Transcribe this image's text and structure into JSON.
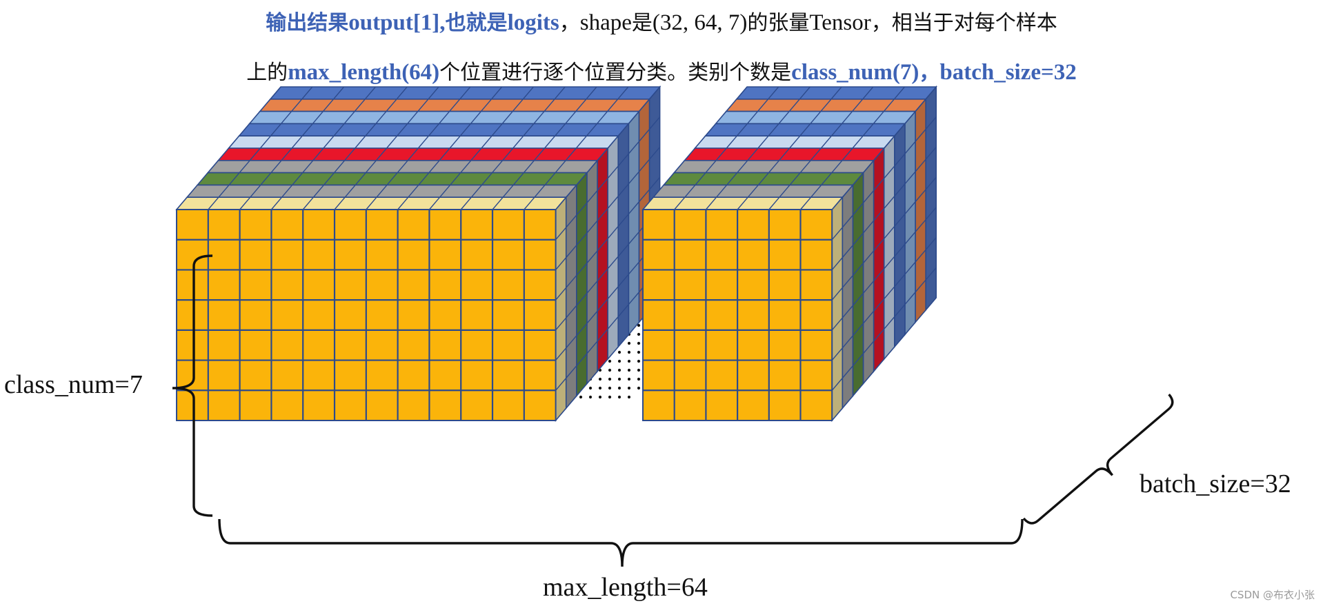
{
  "title": {
    "line1": [
      {
        "text": "输出结果",
        "hl": true,
        "zh": true
      },
      {
        "text": "output[1],",
        "hl": true,
        "zh": false
      },
      {
        "text": "也就是",
        "hl": true,
        "zh": true
      },
      {
        "text": "logits",
        "hl": true,
        "zh": false
      },
      {
        "text": "，",
        "hl": false,
        "zh": true
      },
      {
        "text": "shape",
        "hl": false,
        "zh": false
      },
      {
        "text": "是",
        "hl": false,
        "zh": true
      },
      {
        "text": "(32, 64, 7)",
        "hl": false,
        "zh": false
      },
      {
        "text": "的张量",
        "hl": false,
        "zh": true
      },
      {
        "text": "Tensor",
        "hl": false,
        "zh": false
      },
      {
        "text": "，相当于对每个样本",
        "hl": false,
        "zh": true
      }
    ],
    "line2": [
      {
        "text": "上的",
        "hl": false,
        "zh": true
      },
      {
        "text": "max_length(64)",
        "hl": true,
        "zh": false
      },
      {
        "text": "个位置进行逐个位置分类。类别个数是",
        "hl": false,
        "zh": true
      },
      {
        "text": "class_num(7)",
        "hl": true,
        "zh": false
      },
      {
        "text": "，",
        "hl": true,
        "zh": true
      },
      {
        "text": "batch_size=32",
        "hl": true,
        "zh": false
      }
    ]
  },
  "labels": {
    "class_num": "class_num=7",
    "max_length": "max_length=64",
    "batch_size": "batch_size=32"
  },
  "watermark": "CSDN @布衣小张",
  "tensor": {
    "batch_size": 32,
    "max_length": 64,
    "class_num": 7
  },
  "colors": {
    "front": "#fbb40a",
    "grid_line": "#2c4a8c",
    "dots": "#111111",
    "depth_layers": [
      "#f2e29b",
      "#a0a0a0",
      "#5e8a3e",
      "#a0a0a0",
      "#e8162a",
      "#c9daf0",
      "#4f74c2",
      "#8fb5e2",
      "#e6824a",
      "#4f74c2"
    ]
  }
}
